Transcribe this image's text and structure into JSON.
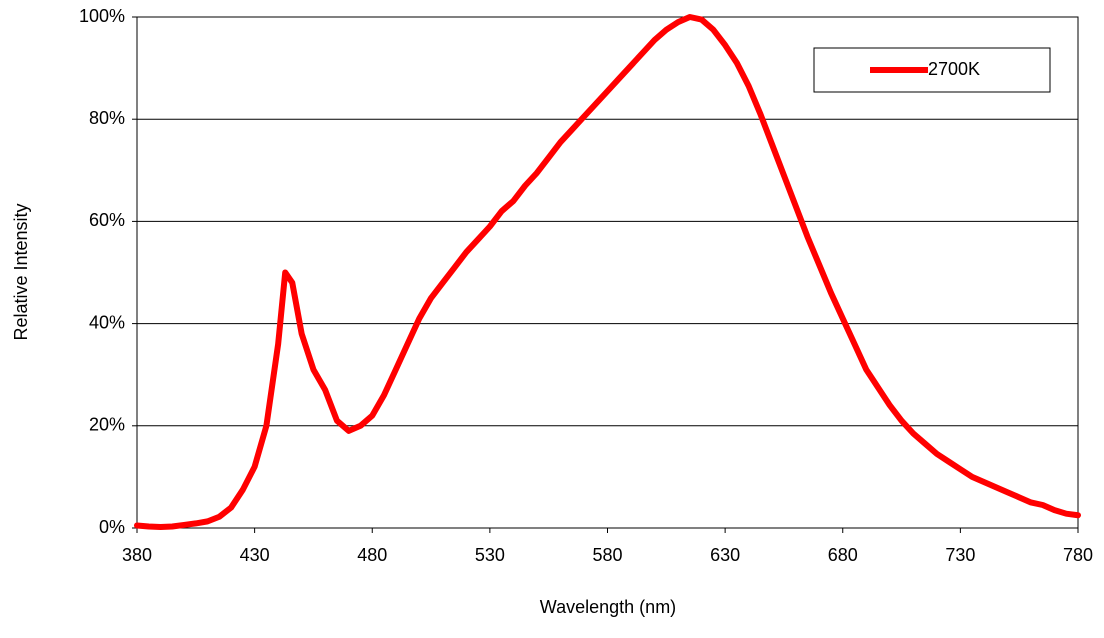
{
  "chart_data": {
    "type": "line",
    "x_label": "Wavelength (nm)",
    "y_label": "Relative Intensity",
    "x": [
      380,
      385,
      390,
      395,
      400,
      405,
      410,
      415,
      420,
      425,
      430,
      435,
      440,
      443,
      446,
      450,
      455,
      460,
      465,
      470,
      475,
      480,
      485,
      490,
      495,
      500,
      505,
      510,
      515,
      520,
      525,
      530,
      535,
      540,
      545,
      550,
      555,
      560,
      565,
      570,
      575,
      580,
      585,
      590,
      595,
      600,
      605,
      610,
      615,
      620,
      625,
      630,
      635,
      640,
      645,
      650,
      655,
      660,
      665,
      670,
      675,
      680,
      685,
      690,
      695,
      700,
      705,
      710,
      715,
      720,
      725,
      730,
      735,
      740,
      745,
      750,
      755,
      760,
      765,
      770,
      775,
      780
    ],
    "series": [
      {
        "name": "2700K",
        "color": "#ff0000",
        "values": [
          0.5,
          0.3,
          0.2,
          0.3,
          0.6,
          0.9,
          1.3,
          2.2,
          4,
          7.5,
          12,
          20,
          36,
          50,
          48,
          38,
          31,
          27,
          21,
          19,
          20,
          22,
          26,
          31,
          36,
          41,
          45,
          48,
          51,
          54,
          56.5,
          59,
          62,
          64,
          67,
          69.5,
          72.5,
          75.5,
          78,
          80.5,
          83,
          85.5,
          88,
          90.5,
          93,
          95.5,
          97.5,
          99,
          100,
          99.5,
          97.5,
          94.5,
          91,
          86.5,
          81,
          75,
          69,
          63,
          57,
          51.5,
          46,
          41,
          36,
          31,
          27.5,
          24,
          21,
          18.5,
          16.5,
          14.5,
          13,
          11.5,
          10,
          9,
          8,
          7,
          6,
          5,
          4.5,
          3.5,
          2.8,
          2.5
        ]
      }
    ],
    "xlim": [
      380,
      780
    ],
    "xticks": [
      380,
      430,
      480,
      530,
      580,
      630,
      680,
      730,
      780
    ],
    "ylim": [
      0,
      100
    ],
    "yticks": [
      {
        "value": 0,
        "label": "0%"
      },
      {
        "value": 20,
        "label": "20%"
      },
      {
        "value": 40,
        "label": "40%"
      },
      {
        "value": 60,
        "label": "60%"
      },
      {
        "value": 80,
        "label": "80%"
      },
      {
        "value": 100,
        "label": "100%"
      }
    ],
    "grid": true,
    "legend": "upper-right"
  }
}
